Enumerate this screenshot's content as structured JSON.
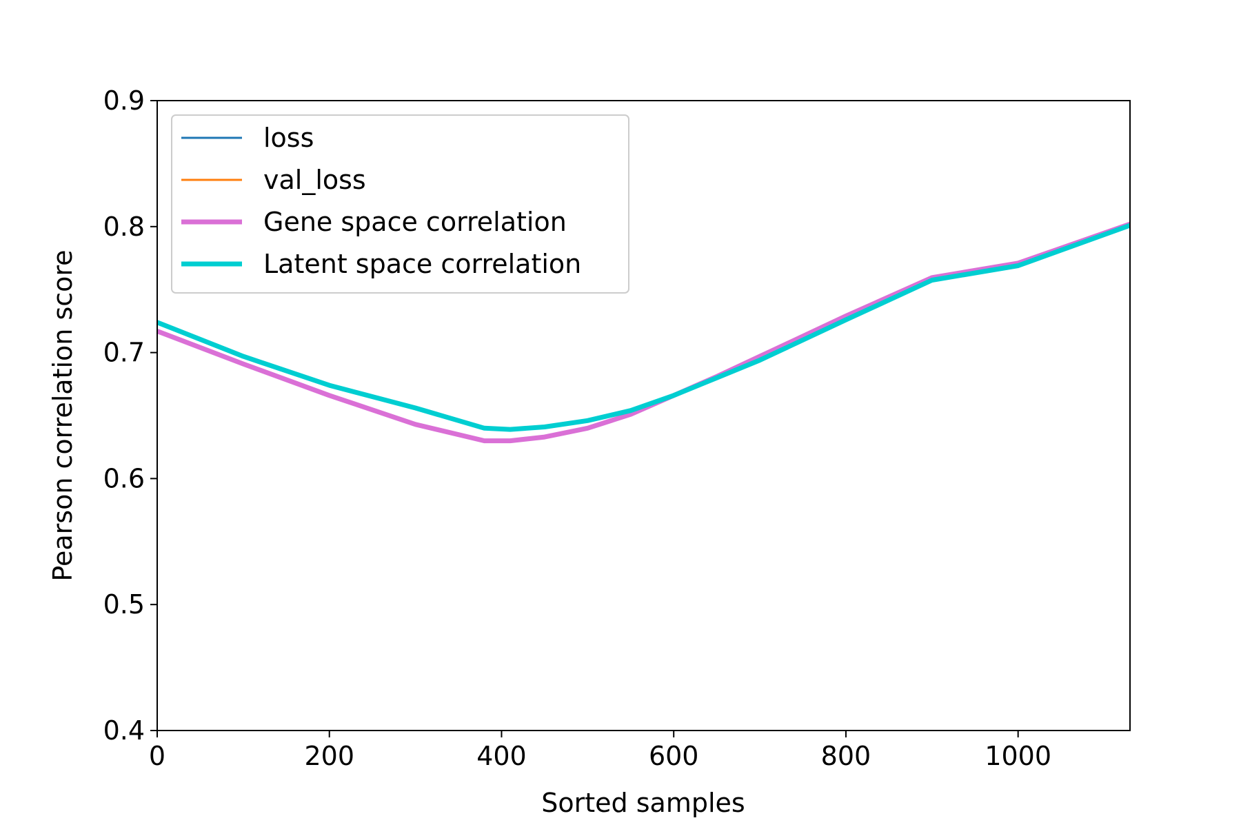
{
  "chart_data": {
    "type": "line",
    "xlabel": "Sorted samples",
    "ylabel": "Pearson correlation score",
    "xlim": [
      0,
      1130
    ],
    "ylim": [
      0.4,
      0.9
    ],
    "x_ticks": [
      0,
      200,
      400,
      600,
      800,
      1000
    ],
    "y_ticks": [
      0.4,
      0.5,
      0.6,
      0.7,
      0.8,
      0.9
    ],
    "x_tick_labels": [
      "0",
      "200",
      "400",
      "600",
      "800",
      "1000"
    ],
    "y_tick_labels": [
      "0.4",
      "0.5",
      "0.6",
      "0.7",
      "0.8",
      "0.9"
    ],
    "grid": false,
    "legend_position": "top-left",
    "series": [
      {
        "name": "loss",
        "color": "#1f77b4",
        "x": [],
        "y": []
      },
      {
        "name": "val_loss",
        "color": "#ff7f0e",
        "x": [],
        "y": []
      },
      {
        "name": "Gene space correlation",
        "color": "#da70d6",
        "x": [
          0,
          100,
          200,
          300,
          380,
          410,
          450,
          500,
          550,
          600,
          650,
          700,
          800,
          900,
          1000,
          1130
        ],
        "y": [
          0.717,
          0.691,
          0.666,
          0.643,
          0.63,
          0.63,
          0.633,
          0.64,
          0.651,
          0.666,
          0.681,
          0.697,
          0.729,
          0.7595,
          0.771,
          0.802
        ]
      },
      {
        "name": "Latent space correlation",
        "color": "#00ced1",
        "x": [
          0,
          100,
          200,
          300,
          380,
          410,
          450,
          500,
          550,
          600,
          650,
          700,
          800,
          900,
          1000,
          1130
        ],
        "y": [
          0.724,
          0.697,
          0.674,
          0.656,
          0.64,
          0.639,
          0.641,
          0.646,
          0.654,
          0.666,
          0.68,
          0.694,
          0.726,
          0.7575,
          0.769,
          0.801
        ]
      }
    ]
  }
}
